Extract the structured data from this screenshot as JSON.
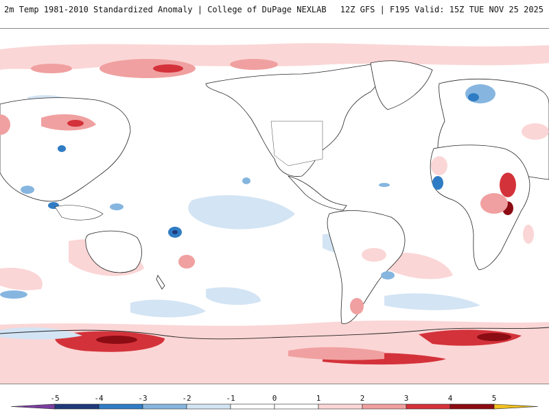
{
  "header": {
    "title_left": "2m Temp 1981-2010 Standardized Anomaly | College of DuPage NEXLAB",
    "title_right": "12Z GFS | F195 Valid: 15Z TUE NOV 25 2025"
  },
  "colorbar": {
    "tick_labels": [
      "-5",
      "-4",
      "-3",
      "-2",
      "-1",
      "0",
      "1",
      "2",
      "3",
      "4",
      "5"
    ],
    "colors": {
      "below_min": "#7b3fa0",
      "m5_m4": "#1f3a7a",
      "m4_m3": "#2f7cc4",
      "m3_m2": "#86b6e0",
      "m2_m1": "#d3e4f4",
      "m1_0": "#ffffff",
      "0_1": "#ffffff",
      "1_2": "#fbd6d6",
      "2_3": "#f0a0a0",
      "3_4": "#d4323a",
      "4_5": "#8c0c14",
      "above_max": "#f0c020"
    }
  },
  "map": {
    "projection": "global equirectangular, Pacific-centered",
    "anomaly_colors": {
      "light_red": "#fbd6d6",
      "medium_red": "#f0a0a0",
      "dark_red": "#d4323a",
      "deep_red": "#8c0c14",
      "light_blue": "#d3e4f4",
      "medium_blue": "#86b6e0",
      "dark_blue": "#2f7cc4",
      "deep_blue": "#1f3a7a",
      "coastline": "#222222"
    }
  }
}
